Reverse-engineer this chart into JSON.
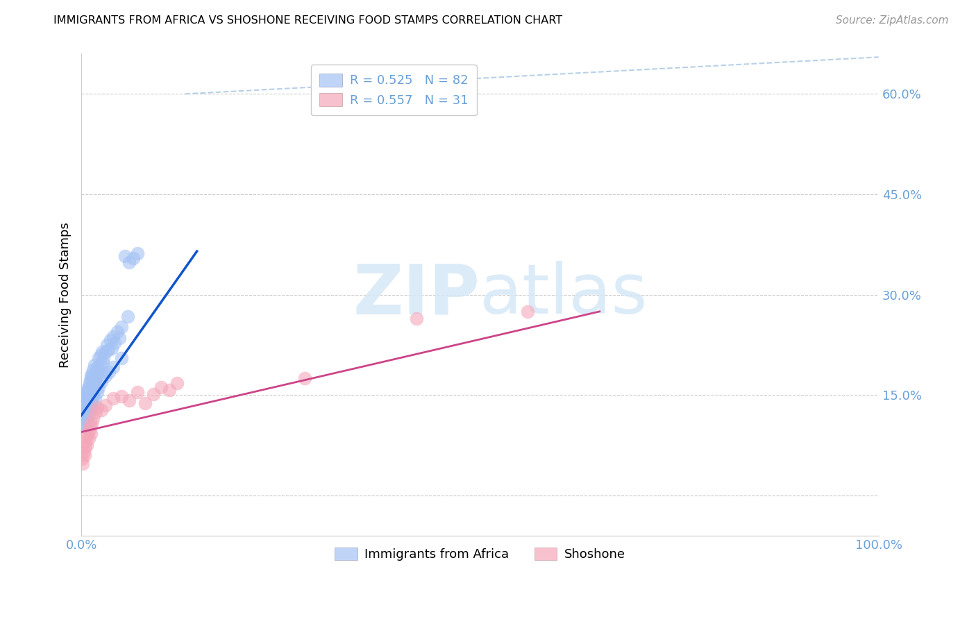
{
  "title": "IMMIGRANTS FROM AFRICA VS SHOSHONE RECEIVING FOOD STAMPS CORRELATION CHART",
  "source": "Source: ZipAtlas.com",
  "ylabel": "Receiving Food Stamps",
  "ytick_vals": [
    0.0,
    0.15,
    0.3,
    0.45,
    0.6
  ],
  "ytick_labels": [
    "",
    "15.0%",
    "30.0%",
    "45.0%",
    "60.0%"
  ],
  "xtick_vals": [
    0.0,
    1.0
  ],
  "xtick_labels": [
    "0.0%",
    "100.0%"
  ],
  "xlim": [
    0.0,
    1.0
  ],
  "ylim": [
    -0.06,
    0.66
  ],
  "legend_blue_r": "R = 0.525",
  "legend_blue_n": "N = 82",
  "legend_pink_r": "R = 0.557",
  "legend_pink_n": "N = 31",
  "legend_label_blue": "Immigrants from Africa",
  "legend_label_pink": "Shoshone",
  "blue_color": "#a4c2f4",
  "pink_color": "#f4a7b9",
  "trendline_blue_color": "#1155cc",
  "trendline_pink_color": "#cc4488",
  "diag_color": "#b8d0e8",
  "watermark_color": "#d6e8f7",
  "background_color": "#ffffff",
  "grid_color": "#cccccc",
  "tick_color": "#6aa0d8",
  "blue_scatter_x": [
    0.001,
    0.002,
    0.002,
    0.003,
    0.003,
    0.004,
    0.004,
    0.005,
    0.005,
    0.006,
    0.006,
    0.007,
    0.007,
    0.007,
    0.008,
    0.008,
    0.009,
    0.009,
    0.01,
    0.01,
    0.01,
    0.011,
    0.011,
    0.012,
    0.012,
    0.013,
    0.013,
    0.014,
    0.014,
    0.015,
    0.015,
    0.016,
    0.016,
    0.017,
    0.018,
    0.019,
    0.02,
    0.021,
    0.022,
    0.023,
    0.024,
    0.025,
    0.026,
    0.027,
    0.028,
    0.03,
    0.032,
    0.034,
    0.036,
    0.038,
    0.04,
    0.042,
    0.045,
    0.048,
    0.05,
    0.055,
    0.058,
    0.06,
    0.065,
    0.07,
    0.001,
    0.002,
    0.003,
    0.004,
    0.005,
    0.006,
    0.007,
    0.008,
    0.009,
    0.01,
    0.011,
    0.012,
    0.013,
    0.015,
    0.017,
    0.02,
    0.022,
    0.025,
    0.03,
    0.035,
    0.04,
    0.05
  ],
  "blue_scatter_y": [
    0.135,
    0.14,
    0.128,
    0.132,
    0.142,
    0.125,
    0.148,
    0.13,
    0.152,
    0.127,
    0.145,
    0.138,
    0.155,
    0.122,
    0.148,
    0.16,
    0.135,
    0.162,
    0.14,
    0.155,
    0.168,
    0.148,
    0.172,
    0.145,
    0.178,
    0.152,
    0.182,
    0.158,
    0.175,
    0.162,
    0.188,
    0.168,
    0.195,
    0.172,
    0.178,
    0.182,
    0.192,
    0.188,
    0.205,
    0.195,
    0.21,
    0.185,
    0.215,
    0.198,
    0.205,
    0.215,
    0.225,
    0.218,
    0.232,
    0.22,
    0.238,
    0.228,
    0.245,
    0.235,
    0.252,
    0.358,
    0.268,
    0.348,
    0.355,
    0.362,
    0.108,
    0.115,
    0.105,
    0.112,
    0.102,
    0.118,
    0.125,
    0.112,
    0.12,
    0.13,
    0.128,
    0.138,
    0.135,
    0.148,
    0.145,
    0.155,
    0.162,
    0.17,
    0.178,
    0.185,
    0.192,
    0.205
  ],
  "pink_scatter_x": [
    0.001,
    0.002,
    0.003,
    0.004,
    0.004,
    0.005,
    0.006,
    0.007,
    0.008,
    0.009,
    0.01,
    0.011,
    0.012,
    0.013,
    0.015,
    0.018,
    0.02,
    0.025,
    0.03,
    0.04,
    0.05,
    0.06,
    0.07,
    0.08,
    0.09,
    0.1,
    0.11,
    0.12,
    0.28,
    0.42,
    0.56
  ],
  "pink_scatter_y": [
    0.055,
    0.048,
    0.065,
    0.072,
    0.06,
    0.08,
    0.088,
    0.075,
    0.092,
    0.085,
    0.098,
    0.105,
    0.092,
    0.108,
    0.115,
    0.125,
    0.132,
    0.128,
    0.135,
    0.145,
    0.148,
    0.142,
    0.155,
    0.138,
    0.152,
    0.162,
    0.158,
    0.168,
    0.175,
    0.265,
    0.275
  ]
}
